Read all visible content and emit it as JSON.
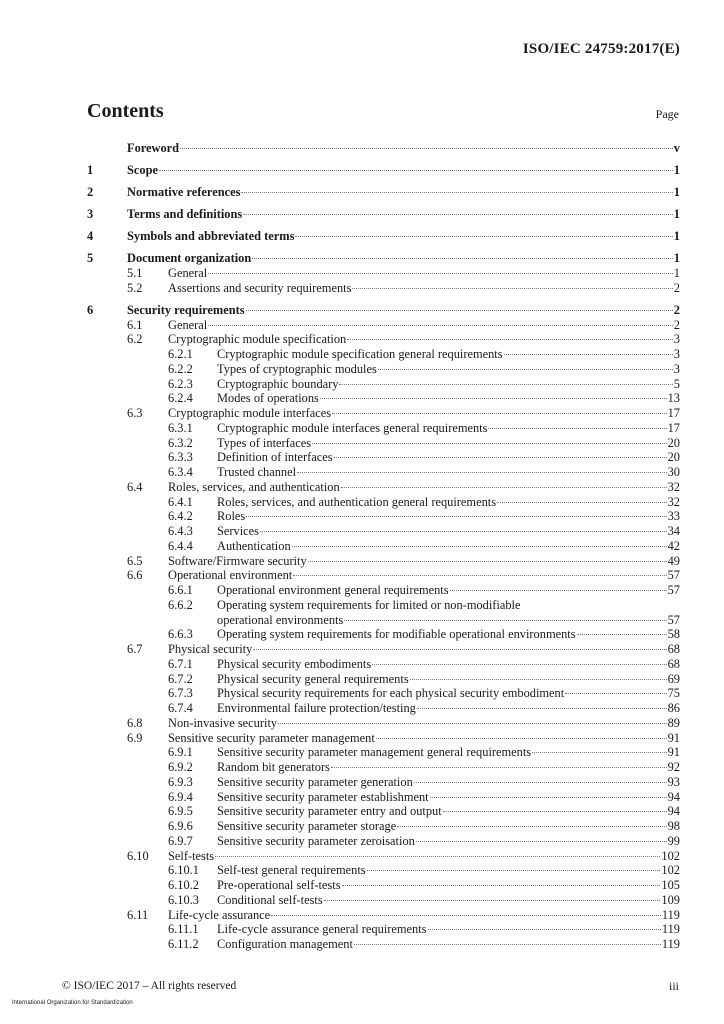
{
  "header": {
    "doc_id": "ISO/IEC 24759:2017(E)"
  },
  "contents": {
    "title": "Contents",
    "page_label": "Page"
  },
  "toc": [
    {
      "level": 1,
      "num": "",
      "title": "Foreword",
      "page": "v"
    },
    {
      "level": 1,
      "num": "1",
      "title": "Scope",
      "page": "1"
    },
    {
      "level": 1,
      "num": "2",
      "title": "Normative references",
      "page": "1"
    },
    {
      "level": 1,
      "num": "3",
      "title": "Terms and definitions",
      "page": "1"
    },
    {
      "level": 1,
      "num": "4",
      "title": "Symbols and abbreviated terms",
      "page": "1"
    },
    {
      "level": 1,
      "num": "5",
      "title": "Document organization",
      "page": "1"
    },
    {
      "level": 2,
      "num": "5.1",
      "title": "General",
      "page": "1"
    },
    {
      "level": 2,
      "num": "5.2",
      "title": "Assertions and security requirements",
      "page": "2"
    },
    {
      "level": 1,
      "num": "6",
      "title": "Security requirements",
      "page": "2"
    },
    {
      "level": 2,
      "num": "6.1",
      "title": "General",
      "page": "2"
    },
    {
      "level": 2,
      "num": "6.2",
      "title": "Cryptographic module specification",
      "page": "3"
    },
    {
      "level": 3,
      "num": "6.2.1",
      "title": "Cryptographic module specification general requirements",
      "page": "3"
    },
    {
      "level": 3,
      "num": "6.2.2",
      "title": "Types of cryptographic modules",
      "page": "3"
    },
    {
      "level": 3,
      "num": "6.2.3",
      "title": "Cryptographic boundary",
      "page": "5"
    },
    {
      "level": 3,
      "num": "6.2.4",
      "title": "Modes of operations",
      "page": "13"
    },
    {
      "level": 2,
      "num": "6.3",
      "title": "Cryptographic module interfaces",
      "page": "17"
    },
    {
      "level": 3,
      "num": "6.3.1",
      "title": "Cryptographic module interfaces general requirements",
      "page": "17"
    },
    {
      "level": 3,
      "num": "6.3.2",
      "title": "Types of interfaces",
      "page": "20"
    },
    {
      "level": 3,
      "num": "6.3.3",
      "title": "Definition of interfaces",
      "page": "20"
    },
    {
      "level": 3,
      "num": "6.3.4",
      "title": "Trusted channel",
      "page": "30"
    },
    {
      "level": 2,
      "num": "6.4",
      "title": "Roles, services, and authentication",
      "page": "32"
    },
    {
      "level": 3,
      "num": "6.4.1",
      "title": "Roles, services, and authentication general requirements",
      "page": "32"
    },
    {
      "level": 3,
      "num": "6.4.2",
      "title": "Roles",
      "page": "33"
    },
    {
      "level": 3,
      "num": "6.4.3",
      "title": "Services",
      "page": "34"
    },
    {
      "level": 3,
      "num": "6.4.4",
      "title": "Authentication",
      "page": "42"
    },
    {
      "level": 2,
      "num": "6.5",
      "title": "Software/Firmware security",
      "page": "49"
    },
    {
      "level": 2,
      "num": "6.6",
      "title": "Operational environment",
      "page": "57"
    },
    {
      "level": 3,
      "num": "6.6.1",
      "title": "Operational environment general requirements",
      "page": "57"
    },
    {
      "level": 3,
      "num": "6.6.2",
      "title": "Operating system requirements for limited or non-modifiable",
      "title_cont": "operational environments",
      "page": "57"
    },
    {
      "level": 3,
      "num": "6.6.3",
      "title": "Operating system requirements for modifiable operational environments",
      "page": "58"
    },
    {
      "level": 2,
      "num": "6.7",
      "title": "Physical security",
      "page": "68"
    },
    {
      "level": 3,
      "num": "6.7.1",
      "title": "Physical security embodiments",
      "page": "68"
    },
    {
      "level": 3,
      "num": "6.7.2",
      "title": "Physical security general requirements",
      "page": "69"
    },
    {
      "level": 3,
      "num": "6.7.3",
      "title": "Physical security requirements for each physical security embodiment",
      "page": "75"
    },
    {
      "level": 3,
      "num": "6.7.4",
      "title": "Environmental failure protection/testing",
      "page": "86"
    },
    {
      "level": 2,
      "num": "6.8",
      "title": "Non-invasive security",
      "page": "89"
    },
    {
      "level": 2,
      "num": "6.9",
      "title": "Sensitive security parameter management",
      "page": "91"
    },
    {
      "level": 3,
      "num": "6.9.1",
      "title": "Sensitive security parameter management general requirements",
      "page": "91"
    },
    {
      "level": 3,
      "num": "6.9.2",
      "title": "Random bit generators",
      "page": "92"
    },
    {
      "level": 3,
      "num": "6.9.3",
      "title": "Sensitive security parameter generation",
      "page": "93"
    },
    {
      "level": 3,
      "num": "6.9.4",
      "title": "Sensitive security parameter establishment",
      "page": "94"
    },
    {
      "level": 3,
      "num": "6.9.5",
      "title": "Sensitive security parameter entry and output",
      "page": "94"
    },
    {
      "level": 3,
      "num": "6.9.6",
      "title": "Sensitive security parameter storage",
      "page": "98"
    },
    {
      "level": 3,
      "num": "6.9.7",
      "title": "Sensitive security parameter zeroisation",
      "page": "99"
    },
    {
      "level": 2,
      "num": "6.10",
      "title": "Self-tests",
      "page": "102"
    },
    {
      "level": 3,
      "num": "6.10.1",
      "title": "Self-test general requirements",
      "page": "102"
    },
    {
      "level": 3,
      "num": "6.10.2",
      "title": "Pre-operational self-tests",
      "page": "105"
    },
    {
      "level": 3,
      "num": "6.10.3",
      "title": "Conditional self-tests",
      "page": "109"
    },
    {
      "level": 2,
      "num": "6.11",
      "title": "Life-cycle assurance",
      "page": "119"
    },
    {
      "level": 3,
      "num": "6.11.1",
      "title": "Life-cycle assurance general requirements",
      "page": "119"
    },
    {
      "level": 3,
      "num": "6.11.2",
      "title": "Configuration management",
      "page": "119"
    }
  ],
  "footer": {
    "org": "International Organization for Standardization",
    "copyright": "© ISO/IEC 2017 – All rights reserved",
    "page_number": "iii"
  }
}
